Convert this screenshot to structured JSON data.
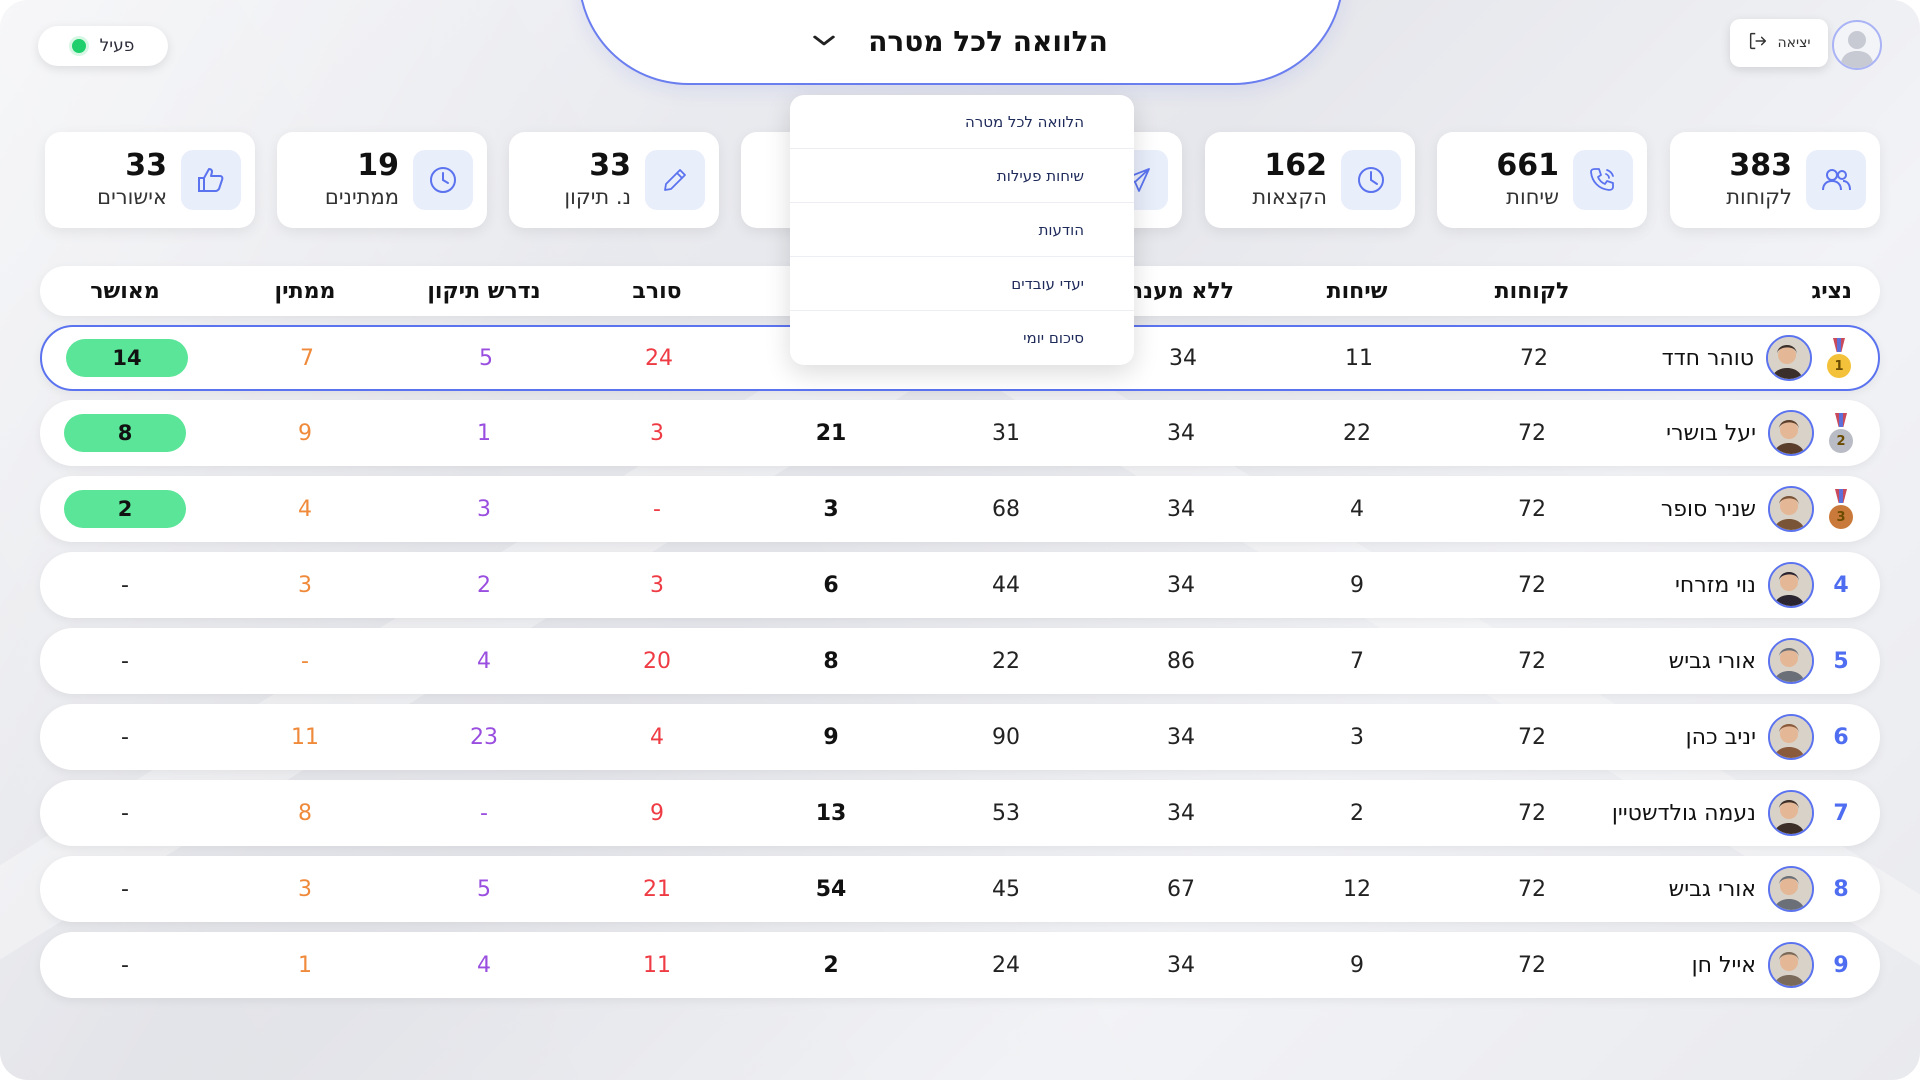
{
  "status": {
    "label": "פעיל",
    "color": "#1fcf6b"
  },
  "header": {
    "title": "הלוואה לכל מטרה",
    "dropdown_icon": "chevron-down-icon"
  },
  "logout": {
    "label": "יציאה",
    "icon": "logout-icon"
  },
  "user": {
    "avatar_icon": "user-avatar-icon"
  },
  "stats": [
    {
      "label": "לקוחות",
      "value": "383",
      "icon": "users-icon"
    },
    {
      "label": "שיחות",
      "value": "661",
      "icon": "phone-icon"
    },
    {
      "label": "הקצאות",
      "value": "162",
      "icon": "pie-clock-icon"
    },
    {
      "label": "",
      "value": "",
      "icon": "send-icon"
    },
    {
      "label": "",
      "value": "",
      "icon": ""
    },
    {
      "label": "נ. תיקון",
      "value": "33",
      "icon": "pencil-icon"
    },
    {
      "label": "ממתינים",
      "value": "19",
      "icon": "clock-icon"
    },
    {
      "label": "אישורים",
      "value": "33",
      "icon": "thumbs-up-icon"
    }
  ],
  "table": {
    "headers": {
      "agent": "נציג",
      "customers": "לקוחות",
      "calls": "שיחות",
      "no_answer": "ללא מענה",
      "col5": "",
      "col6": "",
      "refused": "סורב",
      "needs_fix": "נדרש תיקון",
      "pending": "ממתין",
      "approved": "מאושר"
    },
    "rows": [
      {
        "rank": "1",
        "medal": "gold",
        "name": "טוהר חדד",
        "customers": "72",
        "calls": "11",
        "no_answer": "34",
        "col5": "",
        "col6": "",
        "refused": "24",
        "needs_fix": "5",
        "pending": "7",
        "approved": "14"
      },
      {
        "rank": "2",
        "medal": "silver",
        "name": "יעל בושרי",
        "customers": "72",
        "calls": "22",
        "no_answer": "34",
        "col5": "31",
        "col6": "21",
        "refused": "3",
        "needs_fix": "1",
        "pending": "9",
        "approved": "8"
      },
      {
        "rank": "3",
        "medal": "bronze",
        "name": "שניר סופר",
        "customers": "72",
        "calls": "4",
        "no_answer": "34",
        "col5": "68",
        "col6": "3",
        "refused": "-",
        "needs_fix": "3",
        "pending": "4",
        "approved": "2"
      },
      {
        "rank": "4",
        "medal": "",
        "name": "נוי מזרחי",
        "customers": "72",
        "calls": "9",
        "no_answer": "34",
        "col5": "44",
        "col6": "6",
        "refused": "3",
        "needs_fix": "2",
        "pending": "3",
        "approved": "-"
      },
      {
        "rank": "5",
        "medal": "",
        "name": "אורי גביש",
        "customers": "72",
        "calls": "7",
        "no_answer": "86",
        "col5": "22",
        "col6": "8",
        "refused": "20",
        "needs_fix": "4",
        "pending": "-",
        "approved": "-"
      },
      {
        "rank": "6",
        "medal": "",
        "name": "יניב כהן",
        "customers": "72",
        "calls": "3",
        "no_answer": "34",
        "col5": "90",
        "col6": "9",
        "refused": "4",
        "needs_fix": "23",
        "pending": "11",
        "approved": "-"
      },
      {
        "rank": "7",
        "medal": "",
        "name": "נעמה גולדשטיין",
        "customers": "72",
        "calls": "2",
        "no_answer": "34",
        "col5": "53",
        "col6": "13",
        "refused": "9",
        "needs_fix": "-",
        "pending": "8",
        "approved": "-"
      },
      {
        "rank": "8",
        "medal": "",
        "name": "אורי גביש",
        "customers": "72",
        "calls": "12",
        "no_answer": "67",
        "col5": "45",
        "col6": "54",
        "refused": "21",
        "needs_fix": "5",
        "pending": "3",
        "approved": "-"
      },
      {
        "rank": "9",
        "medal": "",
        "name": "אייל חן",
        "customers": "72",
        "calls": "9",
        "no_answer": "34",
        "col5": "24",
        "col6": "2",
        "refused": "11",
        "needs_fix": "4",
        "pending": "1",
        "approved": "-"
      }
    ]
  },
  "dropdown": {
    "items": [
      "הלוואה לכל מטרה",
      "שיחות פעילות",
      "הודעות",
      "יעדי עובדים",
      "סיכום יומי"
    ]
  },
  "colors": {
    "accent": "#5b73ef",
    "approved": "#5ae598",
    "needs_fix": "#9a4ee0",
    "pending": "#f08a3b",
    "refused": "#ee3b44"
  }
}
